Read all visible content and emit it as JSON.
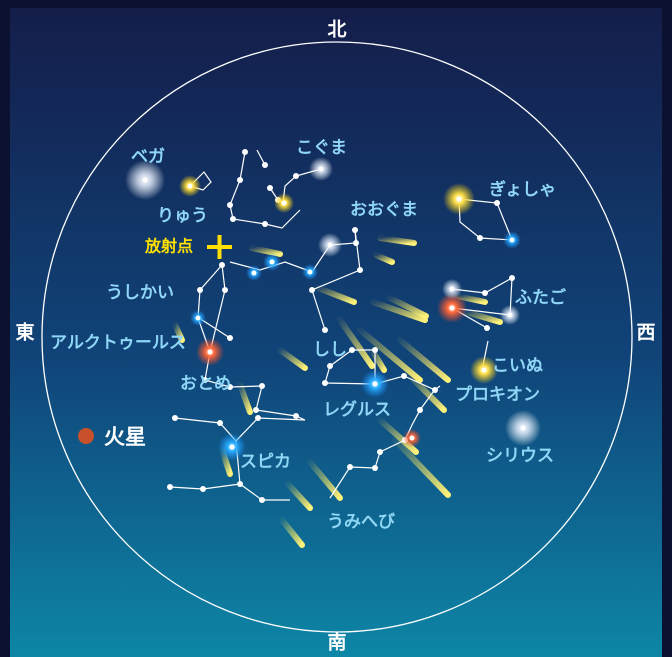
{
  "directions": {
    "north": "北",
    "south": "南",
    "east": "東",
    "west": "西"
  },
  "radiant": "放射点",
  "planet": "火星",
  "labels": [
    "ベガ",
    "こぐま",
    "りゅう",
    "おおぐま",
    "ぎょしゃ",
    "うしかい",
    "ふたご",
    "アルクトゥールス",
    "しし",
    "こいぬ",
    "おとめ",
    "プロキオン",
    "レグルス",
    "シリウス",
    "スピカ",
    "うみへび"
  ]
}
